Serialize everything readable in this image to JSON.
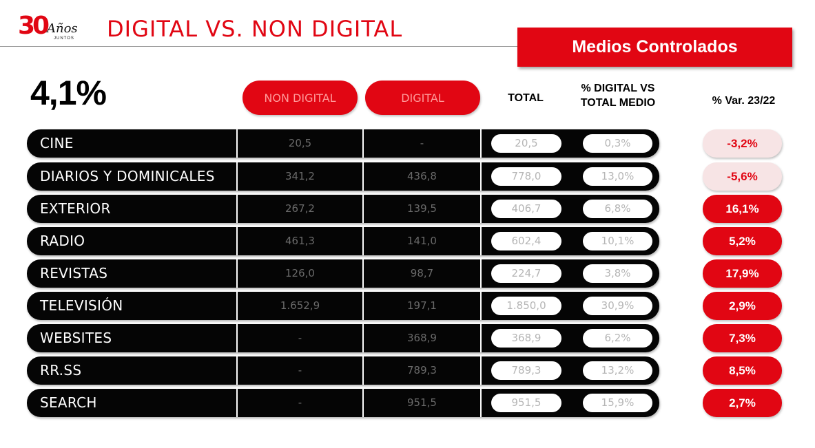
{
  "logo": {
    "number": "30",
    "script": "Años",
    "sub": "JUNTOS"
  },
  "title": "DIGITAL VS. NON DIGITAL",
  "badge": "Medios Controlados",
  "headline": "4,1%",
  "columns": {
    "non_digital": "NON DIGITAL",
    "digital": "DIGITAL",
    "total": "TOTAL",
    "pct_digital_line1": "% DIGITAL VS",
    "pct_digital_line2": "TOTAL MEDIO",
    "var": "% Var. 23/22"
  },
  "colors": {
    "accent": "#e10613",
    "row": "#050505",
    "neg_bg": "#f7e4e5"
  },
  "rows": [
    {
      "label": "CINE",
      "non_digital": "20,5",
      "digital": "-",
      "total": "20,5",
      "pct": "0,3%",
      "var": "-3,2%",
      "var_sign": "neg"
    },
    {
      "label": "DIARIOS Y DOMINICALES",
      "non_digital": "341,2",
      "digital": "436,8",
      "total": "778,0",
      "pct": "13,0%",
      "var": "-5,6%",
      "var_sign": "neg"
    },
    {
      "label": "EXTERIOR",
      "non_digital": "267,2",
      "digital": "139,5",
      "total": "406,7",
      "pct": "6,8%",
      "var": "16,1%",
      "var_sign": "pos"
    },
    {
      "label": "RADIO",
      "non_digital": "461,3",
      "digital": "141,0",
      "total": "602,4",
      "pct": "10,1%",
      "var": "5,2%",
      "var_sign": "pos"
    },
    {
      "label": "REVISTAS",
      "non_digital": "126,0",
      "digital": "98,7",
      "total": "224,7",
      "pct": "3,8%",
      "var": "17,9%",
      "var_sign": "pos"
    },
    {
      "label": "TELEVISIÓN",
      "non_digital": "1.652,9",
      "digital": "197,1",
      "total": "1.850,0",
      "pct": "30,9%",
      "var": "2,9%",
      "var_sign": "pos"
    },
    {
      "label": "WEBSITES",
      "non_digital": "-",
      "digital": "368,9",
      "total": "368,9",
      "pct": "6,2%",
      "var": "7,3%",
      "var_sign": "pos"
    },
    {
      "label": "RR.SS",
      "non_digital": "-",
      "digital": "789,3",
      "total": "789,3",
      "pct": "13,2%",
      "var": "8,5%",
      "var_sign": "pos"
    },
    {
      "label": "SEARCH",
      "non_digital": "-",
      "digital": "951,5",
      "total": "951,5",
      "pct": "15,9%",
      "var": "2,7%",
      "var_sign": "pos"
    }
  ]
}
